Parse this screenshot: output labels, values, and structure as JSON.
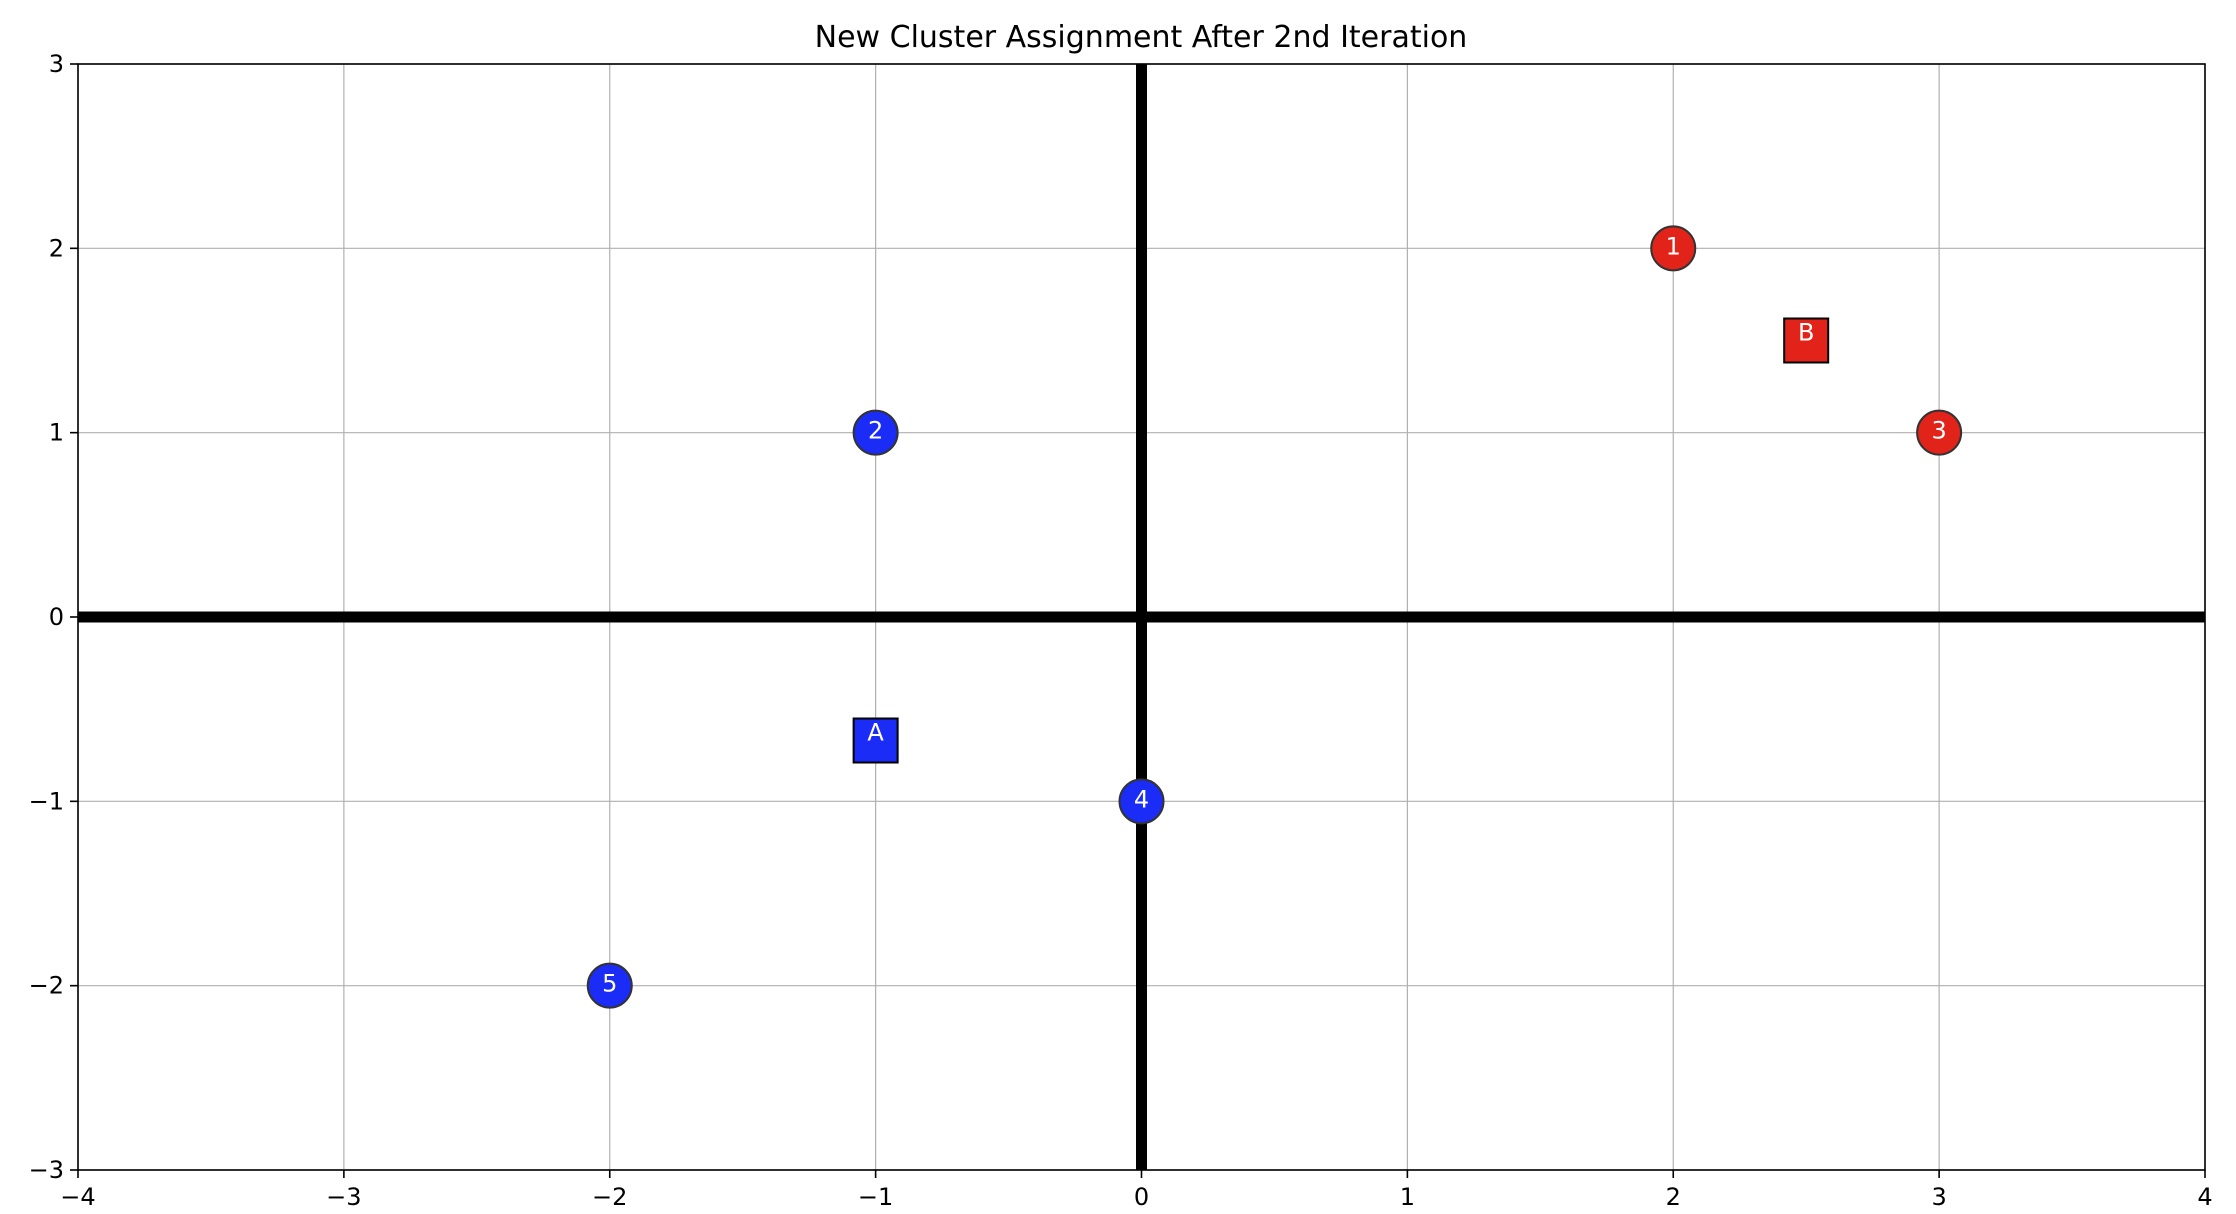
{
  "chart_data": {
    "type": "scatter",
    "title": "New Cluster Assignment After 2nd Iteration",
    "xlabel": "",
    "ylabel": "",
    "xlim": [
      -4,
      4
    ],
    "ylim": [
      -3,
      3
    ],
    "grid": true,
    "x_ticks": [
      -4,
      -3,
      -2,
      -1,
      0,
      1,
      2,
      3,
      4
    ],
    "x_tick_labels": [
      "−4",
      "−3",
      "−2",
      "−1",
      "0",
      "1",
      "2",
      "3",
      "4"
    ],
    "y_ticks": [
      -3,
      -2,
      -1,
      0,
      1,
      2,
      3
    ],
    "y_tick_labels": [
      "−3",
      "−2",
      "−1",
      "0",
      "1",
      "2",
      "3"
    ],
    "reference_lines": {
      "x": 0,
      "y": 0
    },
    "colors": {
      "cluster_a": "#1a2cf5",
      "cluster_b": "#e2231a",
      "edge": "#333333"
    },
    "points": [
      {
        "label": "1",
        "x": 2,
        "y": 2,
        "cluster": "B"
      },
      {
        "label": "2",
        "x": -1,
        "y": 1,
        "cluster": "A"
      },
      {
        "label": "3",
        "x": 3,
        "y": 1,
        "cluster": "B"
      },
      {
        "label": "4",
        "x": 0,
        "y": -1,
        "cluster": "A"
      },
      {
        "label": "5",
        "x": -2,
        "y": -2,
        "cluster": "A"
      }
    ],
    "centroids": [
      {
        "label": "A",
        "x": -1,
        "y": -0.67,
        "cluster": "A"
      },
      {
        "label": "B",
        "x": 2.5,
        "y": 1.5,
        "cluster": "B"
      }
    ]
  }
}
